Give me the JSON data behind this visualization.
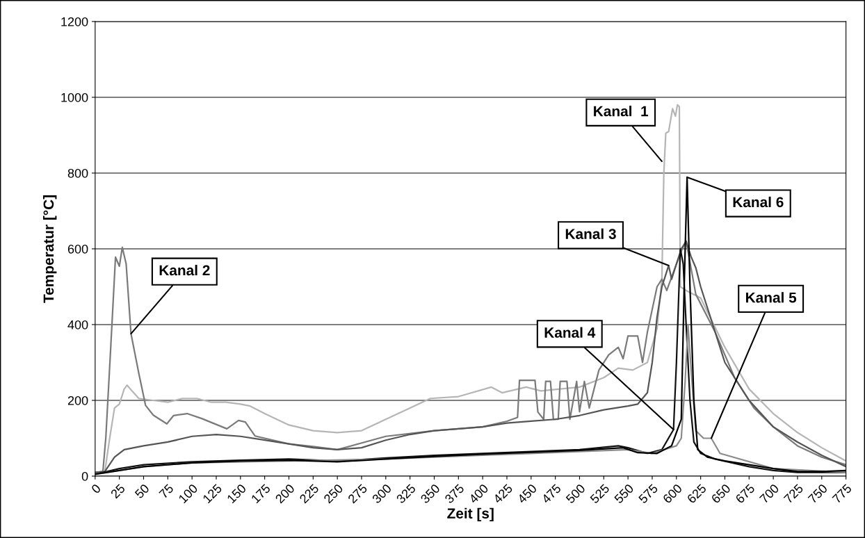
{
  "chart_data": {
    "type": "line",
    "xlabel": "Zeit [s]",
    "ylabel": "Temperatur [°C]",
    "xlim": [
      0,
      775
    ],
    "xticks": [
      0,
      25,
      50,
      75,
      100,
      125,
      150,
      175,
      200,
      225,
      250,
      275,
      300,
      325,
      350,
      375,
      400,
      425,
      450,
      475,
      500,
      525,
      550,
      575,
      600,
      625,
      650,
      675,
      700,
      725,
      750,
      775
    ],
    "ylim": [
      0,
      1200
    ],
    "yticks": [
      0,
      200,
      400,
      600,
      800,
      1000,
      1200
    ],
    "grid": "y",
    "legend": false,
    "marker": "none",
    "line_style": "solid",
    "series": [
      {
        "color": "#b5b5b5",
        "x": [
          0,
          10,
          15,
          20,
          25,
          30,
          33,
          38,
          45,
          60,
          75,
          90,
          105,
          120,
          135,
          150,
          160,
          175,
          200,
          225,
          250,
          275,
          300,
          325,
          346,
          375,
          409,
          420,
          445,
          460,
          480,
          500,
          525,
          540,
          555,
          570,
          580,
          585,
          587,
          589,
          592,
          596,
          599,
          601,
          603,
          604,
          610,
          625,
          650,
          675,
          700,
          725,
          750,
          775
        ],
        "values": [
          10,
          12,
          100,
          180,
          190,
          230,
          240,
          225,
          205,
          200,
          195,
          205,
          205,
          195,
          195,
          190,
          185,
          165,
          135,
          120,
          115,
          120,
          150,
          180,
          205,
          210,
          235,
          220,
          235,
          225,
          230,
          235,
          260,
          285,
          280,
          300,
          390,
          520,
          800,
          905,
          910,
          970,
          950,
          980,
          975,
          500,
          490,
          470,
          340,
          230,
          165,
          115,
          75,
          40
        ]
      },
      {
        "color": "#7a7a7a",
        "x": [
          0,
          8,
          11,
          16,
          21,
          25,
          28,
          32,
          37,
          45,
          52,
          60,
          74,
          81,
          95,
          110,
          136,
          148,
          155,
          165,
          200,
          225,
          250,
          300,
          350,
          400,
          425,
          436,
          438,
          454,
          457,
          463,
          465,
          470,
          473,
          478,
          480,
          487,
          490,
          497,
          500,
          505,
          510,
          520,
          530,
          540,
          545,
          550,
          560,
          565,
          570,
          580,
          585,
          590,
          600,
          606,
          610,
          620,
          640,
          660,
          680,
          700,
          725,
          750,
          775
        ],
        "values": [
          10,
          12,
          101,
          336,
          578,
          554,
          604,
          560,
          376,
          272,
          187,
          161,
          138,
          160,
          165,
          152,
          125,
          147,
          143,
          106,
          85,
          78,
          70,
          105,
          120,
          130,
          145,
          155,
          253,
          253,
          169,
          150,
          250,
          250,
          150,
          150,
          250,
          250,
          150,
          250,
          170,
          250,
          180,
          280,
          320,
          340,
          310,
          370,
          370,
          300,
          380,
          500,
          520,
          490,
          560,
          600,
          620,
          480,
          380,
          260,
          180,
          130,
          80,
          50,
          30
        ]
      },
      {
        "color": "#555555",
        "x": [
          0,
          10,
          20,
          30,
          50,
          75,
          100,
          125,
          150,
          175,
          200,
          225,
          250,
          275,
          300,
          325,
          350,
          375,
          400,
          425,
          450,
          475,
          500,
          525,
          550,
          560,
          570,
          575,
          580,
          585,
          590,
          592,
          595,
          600,
          605,
          610,
          615,
          620,
          625,
          650,
          675,
          700,
          725,
          750,
          775
        ],
        "values": [
          10,
          12,
          50,
          70,
          80,
          90,
          105,
          110,
          105,
          95,
          85,
          75,
          70,
          75,
          95,
          110,
          120,
          125,
          130,
          140,
          145,
          150,
          160,
          175,
          185,
          190,
          220,
          300,
          420,
          500,
          540,
          556,
          520,
          560,
          600,
          620,
          580,
          550,
          500,
          300,
          200,
          130,
          90,
          55,
          25
        ]
      },
      {
        "color": "#111111",
        "x": [
          0,
          25,
          50,
          100,
          150,
          200,
          250,
          300,
          350,
          400,
          450,
          500,
          540,
          550,
          570,
          585,
          597,
          600,
          604,
          607,
          610,
          614,
          618,
          625,
          640,
          675,
          700,
          725,
          750,
          775
        ],
        "values": [
          5,
          20,
          30,
          38,
          42,
          45,
          40,
          48,
          55,
          60,
          65,
          70,
          80,
          75,
          60,
          70,
          123,
          300,
          600,
          560,
          400,
          200,
          90,
          60,
          45,
          25,
          15,
          10,
          10,
          10
        ]
      },
      {
        "color": "#8c8c8c",
        "x": [
          0,
          50,
          100,
          200,
          300,
          400,
          500,
          550,
          575,
          600,
          605,
          609,
          612,
          616,
          620,
          628,
          636,
          645,
          700,
          775
        ],
        "values": [
          5,
          25,
          35,
          40,
          45,
          55,
          65,
          70,
          60,
          80,
          100,
          250,
          398,
          250,
          120,
          100,
          100,
          60,
          20,
          10
        ]
      },
      {
        "color": "#000000",
        "x": [
          0,
          25,
          50,
          100,
          150,
          200,
          250,
          300,
          350,
          400,
          450,
          500,
          545,
          560,
          580,
          595,
          605,
          608,
          611,
          614,
          618,
          622,
          632,
          650,
          700,
          725,
          750,
          775
        ],
        "values": [
          5,
          15,
          25,
          35,
          40,
          42,
          38,
          45,
          52,
          58,
          63,
          68,
          75,
          62,
          60,
          80,
          150,
          500,
          789,
          500,
          200,
          70,
          50,
          40,
          20,
          12,
          12,
          15
        ]
      }
    ],
    "annotations": [
      {
        "text": "Kanal  1",
        "x": 585,
        "y": 831
      },
      {
        "text": "Kanal 2",
        "x": 37,
        "y": 376
      },
      {
        "text": "Kanal 3",
        "x": 592,
        "y": 556
      },
      {
        "text": "Kanal 4",
        "x": 597,
        "y": 123
      },
      {
        "text": "Kanal 5",
        "x": 636,
        "y": 100
      },
      {
        "text": "Kanal 6",
        "x": 611,
        "y": 789
      }
    ]
  }
}
